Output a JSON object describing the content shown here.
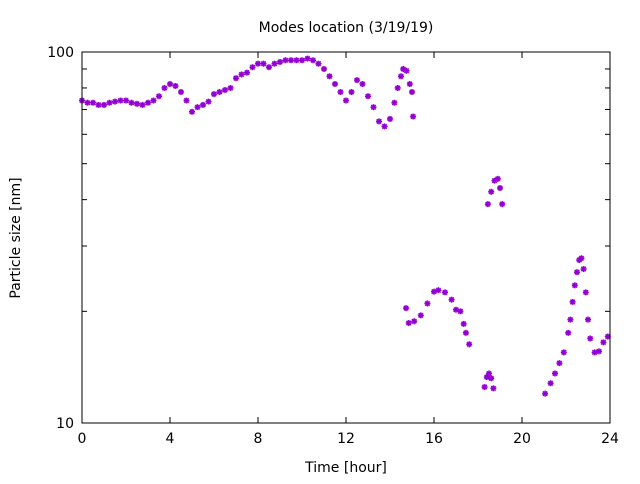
{
  "chart_data": {
    "type": "scatter",
    "title": "Modes location (3/19/19)",
    "xlabel": "Time [hour]",
    "ylabel": "Particle size [nm]",
    "xlim": [
      0,
      24
    ],
    "ylim": [
      10,
      100
    ],
    "yscale": "log",
    "xticks": [
      "0",
      "4",
      "8",
      "12",
      "16",
      "20",
      "24"
    ],
    "yticks": [
      "10",
      "100"
    ],
    "grid": false,
    "legend": "none",
    "color": "#9400d3",
    "series": [
      {
        "name": "modes",
        "points": [
          [
            0,
            74
          ],
          [
            0.25,
            73
          ],
          [
            0.5,
            73
          ],
          [
            0.75,
            72
          ],
          [
            1,
            72
          ],
          [
            1.25,
            73
          ],
          [
            1.5,
            73.5
          ],
          [
            1.75,
            74
          ],
          [
            2,
            74
          ],
          [
            2.25,
            73
          ],
          [
            2.5,
            72.5
          ],
          [
            2.75,
            72
          ],
          [
            3,
            73
          ],
          [
            3.25,
            74
          ],
          [
            3.5,
            76
          ],
          [
            3.75,
            80
          ],
          [
            4,
            82
          ],
          [
            4.25,
            81
          ],
          [
            4.5,
            78
          ],
          [
            4.75,
            74
          ],
          [
            5,
            69
          ],
          [
            5.25,
            71
          ],
          [
            5.5,
            72
          ],
          [
            5.75,
            73.5
          ],
          [
            6,
            77
          ],
          [
            6.25,
            78
          ],
          [
            6.5,
            79
          ],
          [
            6.75,
            80
          ],
          [
            7,
            85
          ],
          [
            7.25,
            87
          ],
          [
            7.5,
            88
          ],
          [
            7.75,
            91
          ],
          [
            8,
            93
          ],
          [
            8.25,
            93
          ],
          [
            8.5,
            91
          ],
          [
            8.75,
            93
          ],
          [
            9,
            94
          ],
          [
            9.25,
            95
          ],
          [
            9.5,
            95
          ],
          [
            9.75,
            95
          ],
          [
            10,
            95
          ],
          [
            10.25,
            96
          ],
          [
            10.5,
            95
          ],
          [
            10.75,
            93
          ],
          [
            11,
            90
          ],
          [
            11.25,
            86
          ],
          [
            11.5,
            82
          ],
          [
            11.75,
            78
          ],
          [
            12,
            74
          ],
          [
            12.25,
            78
          ],
          [
            12.5,
            84
          ],
          [
            12.75,
            82
          ],
          [
            13,
            76
          ],
          [
            13.25,
            71
          ],
          [
            13.5,
            65
          ],
          [
            13.75,
            63
          ],
          [
            14,
            66
          ],
          [
            14.2,
            73
          ],
          [
            14.35,
            80
          ],
          [
            14.5,
            86
          ],
          [
            14.6,
            90
          ],
          [
            14.75,
            89
          ],
          [
            14.9,
            82
          ],
          [
            15,
            78
          ],
          [
            15.05,
            67
          ],
          [
            14.73,
            20.4
          ],
          [
            14.85,
            18.6
          ],
          [
            15.1,
            18.8
          ],
          [
            15.4,
            19.5
          ],
          [
            15.7,
            21
          ],
          [
            16,
            22.6
          ],
          [
            16.2,
            22.8
          ],
          [
            16.5,
            22.5
          ],
          [
            16.8,
            21.5
          ],
          [
            17,
            20.2
          ],
          [
            17.2,
            20
          ],
          [
            17.35,
            18.5
          ],
          [
            17.45,
            17.5
          ],
          [
            17.6,
            16.3
          ],
          [
            18.3,
            12.5
          ],
          [
            18.4,
            13.3
          ],
          [
            18.5,
            13.6
          ],
          [
            18.6,
            13.2
          ],
          [
            18.7,
            12.4
          ],
          [
            18.45,
            38.9
          ],
          [
            18.6,
            42
          ],
          [
            18.75,
            45
          ],
          [
            18.9,
            45.5
          ],
          [
            19.0,
            43
          ],
          [
            19.1,
            38.9
          ],
          [
            21.05,
            12
          ],
          [
            21.3,
            12.8
          ],
          [
            21.5,
            13.6
          ],
          [
            21.7,
            14.5
          ],
          [
            21.9,
            15.5
          ],
          [
            22.1,
            17.5
          ],
          [
            22.2,
            19
          ],
          [
            22.3,
            21.2
          ],
          [
            22.4,
            23.5
          ],
          [
            22.5,
            25.5
          ],
          [
            22.6,
            27.5
          ],
          [
            22.7,
            27.8
          ],
          [
            22.8,
            26
          ],
          [
            22.9,
            22.5
          ],
          [
            23.0,
            19
          ],
          [
            23.1,
            16.9
          ],
          [
            23.3,
            15.5
          ],
          [
            23.5,
            15.6
          ],
          [
            23.7,
            16.5
          ],
          [
            23.9,
            17.1
          ]
        ]
      }
    ]
  }
}
